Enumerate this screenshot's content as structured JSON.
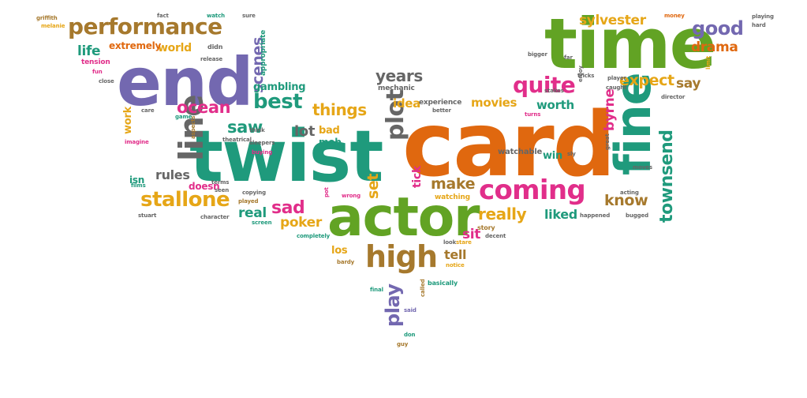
{
  "wordcloud": {
    "colors": {
      "orange": "#e0680f",
      "green": "#62a324",
      "teal": "#1f9a7c",
      "purple": "#7368b0",
      "pink": "#e12e8a",
      "gold": "#e6a617",
      "brown": "#a6792d",
      "grey": "#666666"
    },
    "words": [
      {
        "text": "card",
        "color": "orange"
      },
      {
        "text": "twist",
        "color": "teal"
      },
      {
        "text": "time",
        "color": "green"
      },
      {
        "text": "end",
        "color": "purple"
      },
      {
        "text": "actor",
        "color": "green"
      },
      {
        "text": "fine",
        "color": "teal"
      },
      {
        "text": "high",
        "color": "brown"
      },
      {
        "text": "coming",
        "color": "pink"
      },
      {
        "text": "line",
        "color": "grey"
      },
      {
        "text": "performance",
        "color": "brown"
      },
      {
        "text": "stallone",
        "color": "gold"
      },
      {
        "text": "plot",
        "color": "grey"
      },
      {
        "text": "best",
        "color": "teal"
      },
      {
        "text": "quite",
        "color": "pink"
      },
      {
        "text": "townsend",
        "color": "teal"
      },
      {
        "text": "good",
        "color": "purple"
      },
      {
        "text": "ocean",
        "color": "pink"
      },
      {
        "text": "sylvester",
        "color": "gold"
      },
      {
        "text": "years",
        "color": "grey"
      },
      {
        "text": "make",
        "color": "brown"
      },
      {
        "text": "really",
        "color": "gold"
      },
      {
        "text": "sad",
        "color": "pink"
      },
      {
        "text": "scenes",
        "color": "purple"
      },
      {
        "text": "things",
        "color": "gold"
      },
      {
        "text": "expect",
        "color": "gold"
      },
      {
        "text": "drama",
        "color": "orange"
      },
      {
        "text": "set",
        "color": "gold"
      },
      {
        "text": "play",
        "color": "purple"
      },
      {
        "text": "saw",
        "color": "teal"
      },
      {
        "text": "know",
        "color": "brown"
      },
      {
        "text": "life",
        "color": "teal"
      },
      {
        "text": "byrne",
        "color": "pink"
      },
      {
        "text": "poker",
        "color": "gold"
      },
      {
        "text": "liked",
        "color": "teal"
      },
      {
        "text": "movies",
        "color": "gold"
      },
      {
        "text": "worth",
        "color": "teal"
      },
      {
        "text": "rules",
        "color": "grey"
      },
      {
        "text": "real",
        "color": "teal"
      },
      {
        "text": "tell",
        "color": "brown"
      },
      {
        "text": "say",
        "color": "brown"
      },
      {
        "text": "sit",
        "color": "pink"
      },
      {
        "text": "lot",
        "color": "grey"
      },
      {
        "text": "world",
        "color": "gold"
      },
      {
        "text": "idea",
        "color": "gold"
      },
      {
        "text": "tick",
        "color": "pink"
      },
      {
        "text": "extremely",
        "color": "orange"
      },
      {
        "text": "gambling",
        "color": "teal"
      },
      {
        "text": "win",
        "color": "teal"
      },
      {
        "text": "isn",
        "color": "teal"
      },
      {
        "text": "doesn",
        "color": "pink"
      },
      {
        "text": "los",
        "color": "gold"
      },
      {
        "text": "bad",
        "color": "gold"
      },
      {
        "text": "mob",
        "color": "teal"
      },
      {
        "text": "work",
        "color": "gold"
      },
      {
        "text": "appropriate",
        "color": "teal"
      },
      {
        "text": "tension",
        "color": "pink"
      },
      {
        "text": "mechanic",
        "color": "grey"
      },
      {
        "text": "experience",
        "color": "grey"
      },
      {
        "text": "watchable",
        "color": "grey"
      },
      {
        "text": "watching",
        "color": "gold"
      },
      {
        "text": "completely",
        "color": "teal"
      },
      {
        "text": "story",
        "color": "brown"
      },
      {
        "text": "basically",
        "color": "teal"
      },
      {
        "text": "theatrical",
        "color": "grey"
      },
      {
        "text": "character",
        "color": "grey"
      },
      {
        "text": "copying",
        "color": "grey"
      },
      {
        "text": "played",
        "color": "brown"
      },
      {
        "text": "wrong",
        "color": "pink"
      },
      {
        "text": "caught",
        "color": "grey"
      },
      {
        "text": "director",
        "color": "grey"
      },
      {
        "text": "stakes",
        "color": "grey"
      },
      {
        "text": "tricks",
        "color": "grey"
      },
      {
        "text": "player",
        "color": "grey"
      },
      {
        "text": "release",
        "color": "grey"
      },
      {
        "text": "didn",
        "color": "grey"
      },
      {
        "text": "think",
        "color": "grey"
      },
      {
        "text": "sleepers",
        "color": "grey"
      },
      {
        "text": "buying",
        "color": "pink"
      },
      {
        "text": "stuart",
        "color": "grey"
      },
      {
        "text": "aspects",
        "color": "brown"
      },
      {
        "text": "imagine",
        "color": "pink"
      },
      {
        "text": "griffith",
        "color": "brown"
      },
      {
        "text": "melanie",
        "color": "gold"
      },
      {
        "text": "fact",
        "color": "grey"
      },
      {
        "text": "watch",
        "color": "teal"
      },
      {
        "text": "sure",
        "color": "grey"
      },
      {
        "text": "money",
        "color": "orange"
      },
      {
        "text": "playing",
        "color": "grey"
      },
      {
        "text": "hard",
        "color": "grey"
      },
      {
        "text": "bigger",
        "color": "grey"
      },
      {
        "text": "far",
        "color": "grey"
      },
      {
        "text": "enjoy",
        "color": "grey"
      },
      {
        "text": "limit",
        "color": "gold"
      },
      {
        "text": "close",
        "color": "grey"
      },
      {
        "text": "fun",
        "color": "pink"
      },
      {
        "text": "care",
        "color": "grey"
      },
      {
        "text": "game",
        "color": "teal"
      },
      {
        "text": "terms",
        "color": "grey"
      },
      {
        "text": "seen",
        "color": "grey"
      },
      {
        "text": "screen",
        "color": "teal"
      },
      {
        "text": "films",
        "color": "teal"
      },
      {
        "text": "better",
        "color": "grey"
      },
      {
        "text": "great",
        "color": "grey"
      },
      {
        "text": "moves",
        "color": "grey"
      },
      {
        "text": "sly",
        "color": "grey"
      },
      {
        "text": "acting",
        "color": "grey"
      },
      {
        "text": "bugged",
        "color": "grey"
      },
      {
        "text": "happened",
        "color": "grey"
      },
      {
        "text": "look",
        "color": "grey"
      },
      {
        "text": "stare",
        "color": "gold"
      },
      {
        "text": "decent",
        "color": "grey"
      },
      {
        "text": "notice",
        "color": "gold"
      },
      {
        "text": "bardy",
        "color": "brown"
      },
      {
        "text": "final",
        "color": "teal"
      },
      {
        "text": "called",
        "color": "brown"
      },
      {
        "text": "said",
        "color": "purple"
      },
      {
        "text": "don",
        "color": "teal"
      },
      {
        "text": "guy",
        "color": "brown"
      },
      {
        "text": "turns",
        "color": "pink"
      },
      {
        "text": "pot",
        "color": "pink"
      }
    ]
  }
}
